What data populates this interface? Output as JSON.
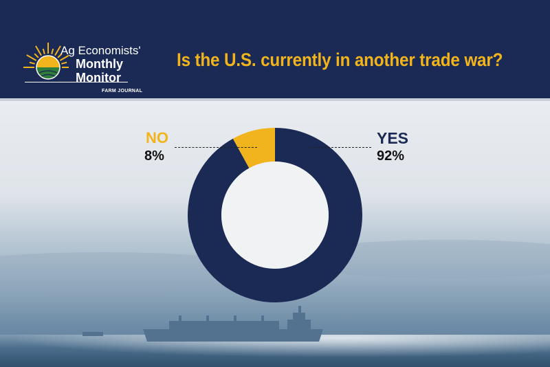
{
  "header": {
    "logo_line1": "Ag Economists'",
    "logo_line2": "Monthly",
    "logo_line3": "Monitor",
    "publisher": "FARM JOURNAL",
    "question": "Is the U.S. currently in another trade war?"
  },
  "colors": {
    "navy": "#1b2a55",
    "gold": "#f2b41c",
    "green": "#2f7d3a"
  },
  "chart_data": {
    "type": "pie",
    "subtype": "donut",
    "title": "Is the U.S. currently in another trade war?",
    "categories": [
      "YES",
      "NO"
    ],
    "values": [
      92,
      8
    ],
    "value_labels": [
      "92%",
      "8%"
    ],
    "colors": [
      "#1b2a55",
      "#f2b41c"
    ]
  }
}
